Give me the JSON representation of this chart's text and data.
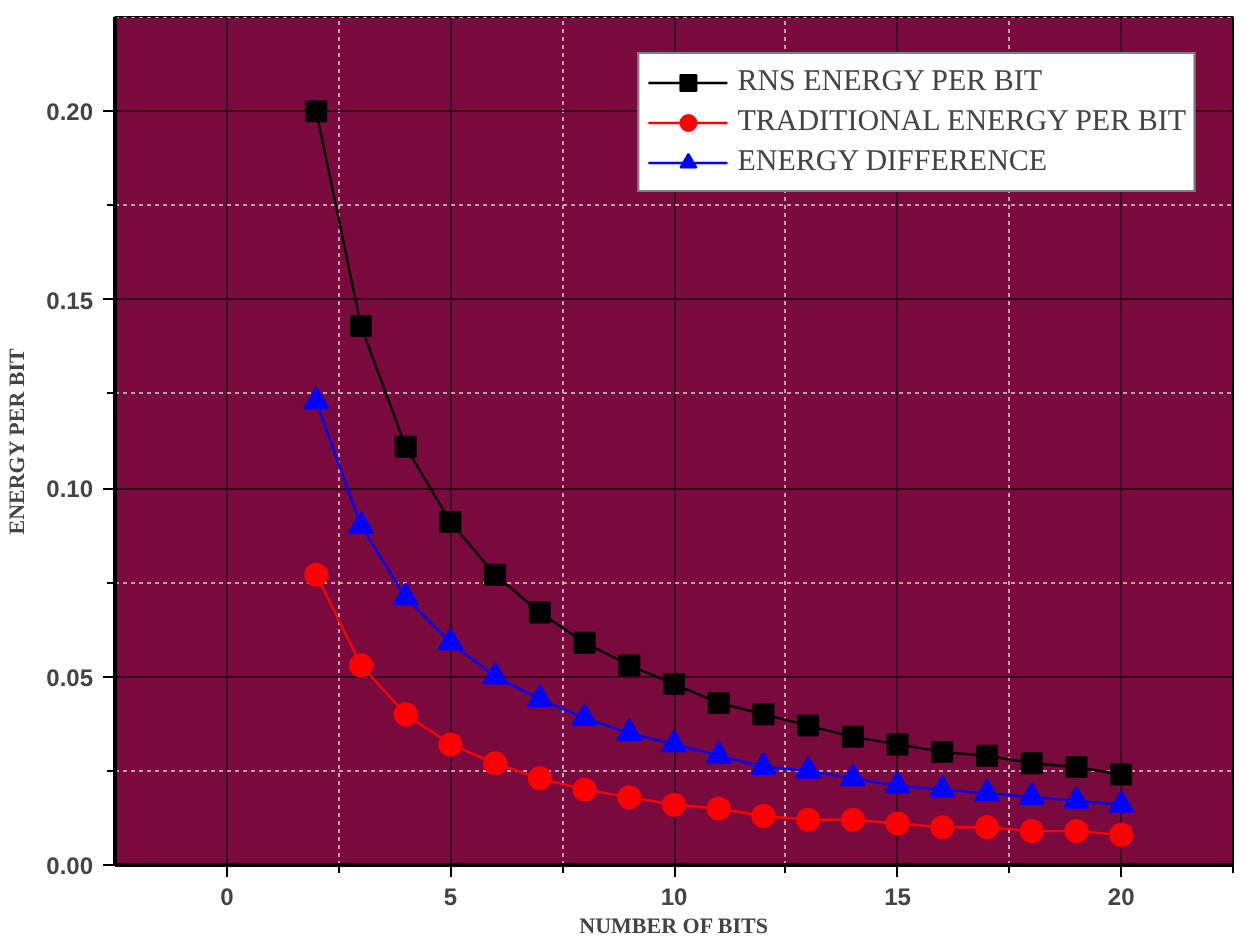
{
  "chart_data": {
    "type": "line",
    "xlabel": "NUMBER OF BITS",
    "ylabel": "ENERGY PER BIT",
    "x": [
      2,
      3,
      4,
      5,
      6,
      7,
      8,
      9,
      10,
      11,
      12,
      13,
      14,
      15,
      16,
      17,
      18,
      19,
      20
    ],
    "series": [
      {
        "name": "RNS ENERGY PER BIT",
        "color": "#000000",
        "marker": "square",
        "values": [
          0.2,
          0.143,
          0.111,
          0.091,
          0.077,
          0.067,
          0.059,
          0.053,
          0.048,
          0.043,
          0.04,
          0.037,
          0.034,
          0.032,
          0.03,
          0.029,
          0.027,
          0.026,
          0.024
        ]
      },
      {
        "name": "TRADITIONAL ENERGY PER BIT",
        "color": "#ff0000",
        "marker": "circle",
        "values": [
          0.077,
          0.053,
          0.04,
          0.032,
          0.027,
          0.023,
          0.02,
          0.018,
          0.016,
          0.015,
          0.013,
          0.012,
          0.012,
          0.011,
          0.01,
          0.01,
          0.009,
          0.009,
          0.008
        ]
      },
      {
        "name": "ENERGY DIFFERENCE",
        "color": "#0000ff",
        "marker": "triangle",
        "values": [
          0.123,
          0.09,
          0.071,
          0.059,
          0.05,
          0.044,
          0.039,
          0.035,
          0.032,
          0.029,
          0.026,
          0.025,
          0.023,
          0.021,
          0.02,
          0.019,
          0.018,
          0.017,
          0.016
        ]
      }
    ],
    "xlim": [
      -2.5,
      22.5
    ],
    "xticks": [
      0,
      5,
      10,
      15,
      20
    ],
    "ylim": [
      0,
      0.225
    ],
    "yticks": [
      {
        "value": 0,
        "label": "0.00"
      },
      {
        "value": 0.05,
        "label": "0.05"
      },
      {
        "value": 0.1,
        "label": "0.10"
      },
      {
        "value": 0.15,
        "label": "0.15"
      },
      {
        "value": 0.2,
        "label": "0.20"
      }
    ],
    "grid": true,
    "legend": "top right",
    "line_style": "solid"
  }
}
